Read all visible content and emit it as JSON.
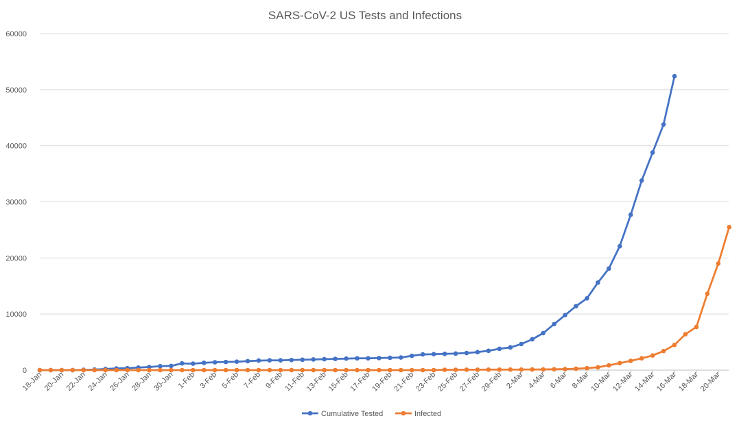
{
  "chart_data": {
    "type": "line",
    "title": "SARS-CoV-2 US Tests and Infections",
    "xlabel": "",
    "ylabel": "",
    "ylim": [
      0,
      60000
    ],
    "y_ticks": [
      "0",
      "10000",
      "20000",
      "30000",
      "40000",
      "50000",
      "60000"
    ],
    "x_tick_labels": [
      "18-Jan",
      "20-Jan",
      "22-Jan",
      "24-Jan",
      "26-Jan",
      "28-Jan",
      "30-Jan",
      "1-Feb",
      "3-Feb",
      "5-Feb",
      "7-Feb",
      "9-Feb",
      "11-Feb",
      "13-Feb",
      "15-Feb",
      "17-Feb",
      "19-Feb",
      "21-Feb",
      "23-Feb",
      "25-Feb",
      "27-Feb",
      "29-Feb",
      "2-Mar",
      "4-Mar",
      "6-Mar",
      "8-Mar",
      "10-Mar",
      "12-Mar",
      "14-Mar",
      "16-Mar",
      "18-Mar",
      "20-Mar"
    ],
    "x_start": "18-Jan",
    "gridlines": "horizontal",
    "legend_position": "bottom",
    "series": [
      {
        "name": "Cumulative Tested",
        "color": "#4472C4",
        "values": [
          0,
          0,
          0,
          0,
          50,
          100,
          200,
          300,
          350,
          450,
          550,
          700,
          750,
          1200,
          1150,
          1300,
          1400,
          1450,
          1500,
          1600,
          1700,
          1750,
          1750,
          1800,
          1850,
          1900,
          1950,
          2000,
          2050,
          2100,
          2100,
          2150,
          2200,
          2250,
          2550,
          2800,
          2850,
          2900,
          2950,
          3050,
          3200,
          3450,
          3800,
          4050,
          4650,
          5500,
          6600,
          8200,
          9800,
          11400,
          12800,
          15600,
          18100,
          22100,
          27700,
          33800,
          38800,
          43800,
          52400
        ]
      },
      {
        "name": "Infected",
        "color": "#ED7D31",
        "values": [
          0,
          0,
          0,
          0,
          0,
          0,
          0,
          0,
          0,
          0,
          0,
          0,
          0,
          0,
          0,
          0,
          0,
          0,
          0,
          0,
          0,
          0,
          0,
          0,
          0,
          0,
          0,
          0,
          0,
          0,
          0,
          0,
          0,
          0,
          0,
          0,
          0,
          60,
          60,
          70,
          70,
          80,
          90,
          100,
          100,
          110,
          120,
          150,
          180,
          250,
          350,
          500,
          850,
          1250,
          1650,
          2100,
          2600,
          3400,
          4500,
          6400,
          7700,
          13600,
          19000,
          25500
        ]
      }
    ]
  }
}
